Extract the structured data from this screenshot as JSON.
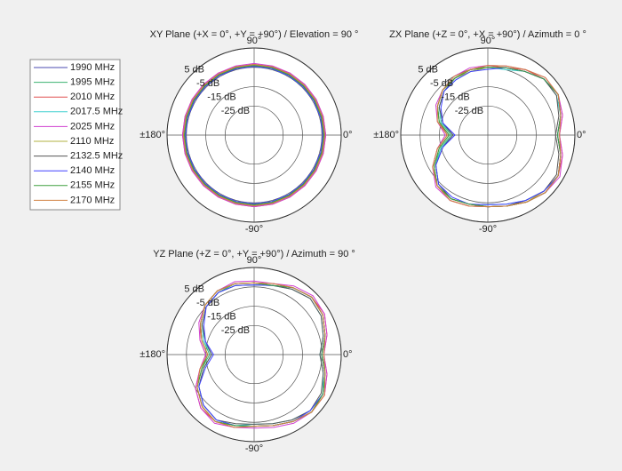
{
  "chart_data": [
    {
      "type": "polar",
      "title": "XY Plane (+X = 0°, +Y = +90°) / Elevation = 90 °",
      "theta": [
        0,
        15,
        30,
        45,
        60,
        75,
        90,
        105,
        120,
        135,
        150,
        165,
        180,
        195,
        210,
        225,
        240,
        255,
        270,
        285,
        300,
        315,
        330,
        345
      ],
      "rlim": [
        -40,
        5
      ],
      "rticks": [
        {
          "value": -25,
          "label": "-25 dB"
        },
        {
          "value": -15,
          "label": "-15 dB"
        },
        {
          "value": -5,
          "label": "-5 dB"
        },
        {
          "value": 5,
          "label": "5 dB"
        }
      ],
      "thetaticks": [
        {
          "value": 0,
          "label": "0°"
        },
        {
          "value": 90,
          "label": "90°"
        },
        {
          "value": 180,
          "label": "±180°"
        },
        {
          "value": -90,
          "label": "-90°"
        }
      ],
      "series": [
        {
          "name": "1990 MHz",
          "color": "#4b4bb0",
          "values": [
            -4,
            -4,
            -4,
            -4,
            -4,
            -4,
            -4,
            -4,
            -4,
            -4,
            -4,
            -4,
            -4,
            -4,
            -4,
            -4,
            -4,
            -4,
            -4,
            -4,
            -4,
            -4,
            -4,
            -4
          ]
        },
        {
          "name": "1995 MHz",
          "color": "#3cb371",
          "values": [
            -3.5,
            -3.5,
            -3.5,
            -3.5,
            -3.5,
            -3.5,
            -3.5,
            -3.5,
            -3.5,
            -3.5,
            -3.5,
            -3.5,
            -3.5,
            -3.5,
            -3.5,
            -3.5,
            -3.5,
            -3.5,
            -3.5,
            -3.5,
            -3.5,
            -3.5,
            -3.5,
            -3.5
          ]
        },
        {
          "name": "2010 MHz",
          "color": "#e05050",
          "values": [
            -3,
            -3,
            -3,
            -3,
            -3,
            -3.5,
            -3.5,
            -3.5,
            -3,
            -3,
            -3,
            -3,
            -3,
            -3,
            -3,
            -3,
            -3,
            -3,
            -3,
            -3,
            -3,
            -3,
            -3,
            -3
          ]
        },
        {
          "name": "2017.5 MHz",
          "color": "#40d0d0",
          "values": [
            -4,
            -4,
            -4,
            -4.5,
            -4.5,
            -4.5,
            -4.5,
            -4,
            -4,
            -4,
            -4,
            -4,
            -4,
            -4,
            -4,
            -4,
            -4,
            -4,
            -4,
            -4,
            -4,
            -4,
            -4,
            -4
          ]
        },
        {
          "name": "2025 MHz",
          "color": "#d040d0",
          "values": [
            -3,
            -3,
            -3,
            -3,
            -3,
            -3,
            -3,
            -3,
            -3,
            -3,
            -3,
            -3,
            -3,
            -3,
            -3,
            -3,
            -3,
            -3,
            -3,
            -3,
            -3,
            -3,
            -3,
            -3
          ]
        },
        {
          "name": "2110 MHz",
          "color": "#b0b040",
          "values": [
            -4,
            -4,
            -4,
            -4,
            -4,
            -4,
            -4,
            -4,
            -4,
            -4,
            -4,
            -4,
            -4,
            -4,
            -4,
            -4,
            -4,
            -4,
            -4,
            -4,
            -4,
            -4,
            -4,
            -4
          ]
        },
        {
          "name": "2132.5 MHz",
          "color": "#555555",
          "values": [
            -4,
            -4,
            -4,
            -4,
            -4,
            -4,
            -4.5,
            -4.5,
            -4,
            -4,
            -4,
            -4,
            -4,
            -4,
            -4,
            -4,
            -4,
            -4,
            -4,
            -4,
            -4,
            -4,
            -4,
            -4
          ]
        },
        {
          "name": "2140 MHz",
          "color": "#4040ff",
          "values": [
            -4.5,
            -4.5,
            -4.5,
            -4.5,
            -4.5,
            -4.5,
            -4.5,
            -4.5,
            -4.5,
            -4.5,
            -4.5,
            -4.5,
            -4.5,
            -4.5,
            -4.5,
            -4.5,
            -4.5,
            -4.5,
            -4.5,
            -4.5,
            -4.5,
            -4.5,
            -4.5,
            -4.5
          ]
        },
        {
          "name": "2155 MHz",
          "color": "#40a040",
          "values": [
            -4,
            -4,
            -4,
            -4,
            -4,
            -4,
            -4,
            -4,
            -4,
            -4,
            -4,
            -4,
            -4,
            -4,
            -4,
            -4,
            -4,
            -4,
            -4,
            -4,
            -4,
            -4,
            -4,
            -4
          ]
        },
        {
          "name": "2170 MHz",
          "color": "#d08040",
          "values": [
            -3.5,
            -3.5,
            -3.5,
            -3.5,
            -3.5,
            -3.5,
            -3.5,
            -3.5,
            -3.5,
            -3.5,
            -3.5,
            -3.5,
            -3.5,
            -3.5,
            -3.5,
            -3.5,
            -3.5,
            -3.5,
            -3.5,
            -3.5,
            -3.5,
            -3.5,
            -3.5,
            -3.5
          ]
        }
      ]
    },
    {
      "type": "polar",
      "title": "ZX Plane (+Z = 0°, +X = +90°) / Azimuth = 0 °",
      "theta": [
        0,
        15,
        30,
        45,
        60,
        75,
        90,
        105,
        120,
        135,
        150,
        165,
        180,
        195,
        210,
        225,
        240,
        255,
        270,
        285,
        300,
        315,
        330,
        345
      ],
      "rlim": [
        -40,
        5
      ],
      "rticks": [
        {
          "value": -25,
          "label": "-25 dB"
        },
        {
          "value": -15,
          "label": "-15 dB"
        },
        {
          "value": -5,
          "label": "-5 dB"
        },
        {
          "value": 5,
          "label": "5 dB"
        }
      ],
      "thetaticks": [
        {
          "value": 0,
          "label": "0°"
        },
        {
          "value": 90,
          "label": "90°"
        },
        {
          "value": 180,
          "label": "±180°"
        },
        {
          "value": -90,
          "label": "-90°"
        }
      ],
      "series": [
        {
          "values": [
            -4,
            -1,
            2,
            1,
            -2,
            -4,
            -5,
            -5,
            -6,
            -7,
            -10,
            -14,
            -20,
            -14,
            -8,
            -3,
            -2,
            -3,
            -3,
            -2,
            0,
            2,
            2,
            -1
          ]
        },
        {
          "values": [
            -4,
            -1,
            2,
            1,
            -2,
            -4,
            -5,
            -5,
            -6,
            -8,
            -11,
            -15,
            -21,
            -15,
            -8,
            -3,
            -2,
            -3,
            -3,
            -2,
            0,
            2,
            2,
            -1
          ]
        },
        {
          "values": [
            -3,
            0,
            2,
            1,
            -1,
            -4,
            -4,
            -5,
            -6,
            -7,
            -10,
            -14,
            -19,
            -13,
            -7,
            -3,
            -1,
            -2,
            -3,
            -2,
            0,
            2,
            2,
            0
          ]
        },
        {
          "values": [
            -4,
            -1,
            1,
            1,
            -2,
            -5,
            -5,
            -6,
            -7,
            -8,
            -11,
            -15,
            -22,
            -15,
            -9,
            -4,
            -2,
            -3,
            -4,
            -3,
            -1,
            1,
            2,
            -1
          ]
        },
        {
          "values": [
            -3,
            0,
            2,
            2,
            -1,
            -3,
            -4,
            -4,
            -5,
            -7,
            -9,
            -13,
            -18,
            -13,
            -7,
            -2,
            -1,
            -2,
            -3,
            -2,
            0,
            2,
            3,
            0
          ]
        },
        {
          "values": [
            -4,
            -1,
            2,
            1,
            -2,
            -4,
            -5,
            -6,
            -6,
            -7,
            -10,
            -14,
            -20,
            -14,
            -8,
            -3,
            -2,
            -3,
            -3,
            -2,
            0,
            1,
            2,
            -1
          ]
        },
        {
          "values": [
            -5,
            -2,
            1,
            1,
            -2,
            -4,
            -5,
            -5,
            -6,
            -8,
            -11,
            -16,
            -22,
            -16,
            -9,
            -4,
            -2,
            -3,
            -3,
            -2,
            -1,
            1,
            1,
            -2
          ]
        },
        {
          "values": [
            -4,
            -1,
            2,
            1,
            -2,
            -4,
            -6,
            -6,
            -7,
            -8,
            -12,
            -16,
            -23,
            -16,
            -9,
            -4,
            -3,
            -3,
            -4,
            -3,
            -1,
            1,
            2,
            -1
          ]
        },
        {
          "values": [
            -4,
            -1,
            2,
            1,
            -2,
            -4,
            -5,
            -5,
            -6,
            -7,
            -10,
            -14,
            -20,
            -14,
            -8,
            -3,
            -2,
            -3,
            -3,
            -2,
            0,
            2,
            2,
            -1
          ]
        },
        {
          "values": [
            -3,
            -1,
            2,
            2,
            -1,
            -3,
            -4,
            -5,
            -5,
            -7,
            -10,
            -13,
            -19,
            -13,
            -7,
            -3,
            -1,
            -2,
            -3,
            -2,
            0,
            2,
            2,
            -1
          ]
        }
      ]
    },
    {
      "type": "polar",
      "title": "YZ Plane (+Z = 0°, +Y = +90°) / Azimuth = 90 °",
      "theta": [
        0,
        15,
        30,
        45,
        60,
        75,
        90,
        105,
        120,
        135,
        150,
        165,
        180,
        195,
        210,
        225,
        240,
        255,
        270,
        285,
        300,
        315,
        330,
        345
      ],
      "rlim": [
        -40,
        5
      ],
      "rticks": [
        {
          "value": -25,
          "label": "-25 dB"
        },
        {
          "value": -15,
          "label": "-15 dB"
        },
        {
          "value": -5,
          "label": "-5 dB"
        },
        {
          "value": 5,
          "label": "5 dB"
        }
      ],
      "thetaticks": [
        {
          "value": 0,
          "label": "0°"
        },
        {
          "value": 90,
          "label": "90°"
        },
        {
          "value": 180,
          "label": "±180°"
        },
        {
          "value": -90,
          "label": "-90°"
        }
      ],
      "series": [
        {
          "values": [
            -5,
            -2,
            1,
            2,
            0,
            -3,
            -3,
            -2,
            -2,
            -4,
            -8,
            -12,
            -16,
            -12,
            -6,
            -2,
            0,
            -2,
            -3,
            -2,
            0,
            2,
            1,
            -2
          ]
        },
        {
          "values": [
            -5,
            -2,
            1,
            2,
            0,
            -3,
            -3,
            -2,
            -3,
            -5,
            -9,
            -13,
            -17,
            -12,
            -6,
            -2,
            0,
            -2,
            -3,
            -2,
            0,
            2,
            1,
            -2
          ]
        },
        {
          "values": [
            -4,
            -1,
            2,
            2,
            0,
            -2,
            -3,
            -2,
            -2,
            -4,
            -8,
            -11,
            -15,
            -11,
            -5,
            -1,
            0,
            -1,
            -3,
            -2,
            0,
            2,
            2,
            -1
          ]
        },
        {
          "values": [
            -6,
            -3,
            0,
            1,
            -1,
            -3,
            -4,
            -3,
            -3,
            -5,
            -9,
            -13,
            -18,
            -13,
            -7,
            -3,
            -1,
            -2,
            -4,
            -3,
            -1,
            1,
            1,
            -3
          ]
        },
        {
          "values": [
            -4,
            -1,
            2,
            3,
            1,
            -2,
            -2,
            -1,
            -2,
            -4,
            -7,
            -11,
            -15,
            -11,
            -5,
            -1,
            1,
            -1,
            -2,
            -1,
            1,
            2,
            2,
            -1
          ]
        },
        {
          "values": [
            -5,
            -2,
            1,
            2,
            0,
            -3,
            -3,
            -2,
            -2,
            -4,
            -8,
            -12,
            -16,
            -12,
            -6,
            -2,
            0,
            -2,
            -3,
            -2,
            0,
            2,
            1,
            -2
          ]
        },
        {
          "values": [
            -6,
            -3,
            0,
            1,
            -1,
            -3,
            -4,
            -3,
            -3,
            -5,
            -9,
            -14,
            -18,
            -13,
            -7,
            -3,
            -1,
            -3,
            -4,
            -3,
            -1,
            1,
            0,
            -3
          ]
        },
        {
          "values": [
            -5,
            -2,
            1,
            2,
            0,
            -3,
            -4,
            -3,
            -3,
            -5,
            -10,
            -14,
            -19,
            -14,
            -7,
            -3,
            -1,
            -2,
            -3,
            -2,
            0,
            1,
            1,
            -2
          ]
        },
        {
          "values": [
            -5,
            -2,
            1,
            2,
            0,
            -3,
            -3,
            -2,
            -2,
            -4,
            -8,
            -12,
            -16,
            -12,
            -6,
            -2,
            0,
            -2,
            -3,
            -2,
            0,
            2,
            1,
            -2
          ]
        },
        {
          "values": [
            -4,
            -2,
            1,
            2,
            0,
            -2,
            -3,
            -2,
            -2,
            -4,
            -8,
            -12,
            -16,
            -11,
            -6,
            -2,
            0,
            -1,
            -3,
            -2,
            0,
            2,
            2,
            -2
          ]
        }
      ]
    }
  ]
}
